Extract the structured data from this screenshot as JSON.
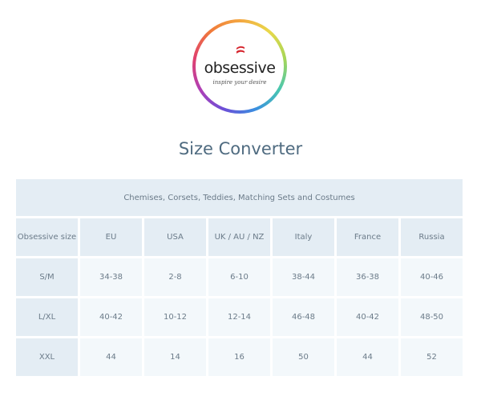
{
  "logo": {
    "brand": "obsessive",
    "tagline": "inspire your desire"
  },
  "title": "Size Converter",
  "table": {
    "caption": "Chemises, Corsets, Teddies, Matching Sets and Costumes",
    "headers": [
      "Obsessive size",
      "EU",
      "USA",
      "UK / AU / NZ",
      "Italy",
      "France",
      "Russia"
    ],
    "rows": [
      [
        "S/M",
        "34-38",
        "2-8",
        "6-10",
        "38-44",
        "36-38",
        "40-46"
      ],
      [
        "L/XL",
        "40-42",
        "10-12",
        "12-14",
        "46-48",
        "40-42",
        "48-50"
      ],
      [
        "XXL",
        "44",
        "14",
        "16",
        "50",
        "44",
        "52"
      ]
    ]
  }
}
